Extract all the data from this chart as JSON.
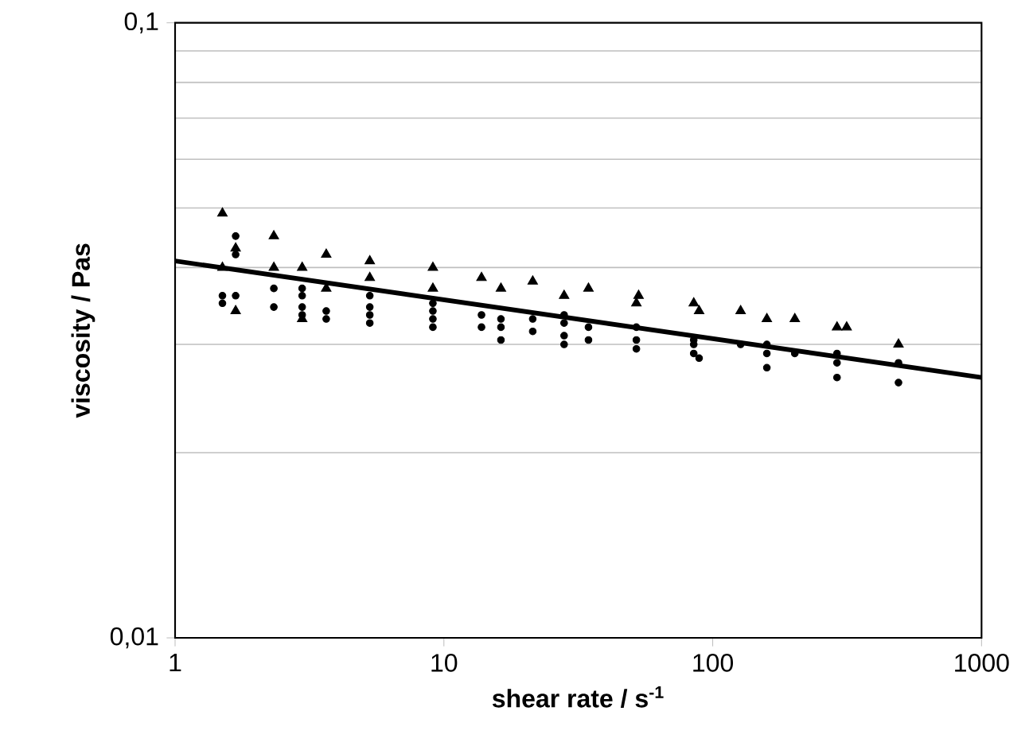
{
  "chart_data": {
    "type": "scatter",
    "xlabel": "shear rate / s$^{-1}$",
    "ylabel": "viscosity / Pas",
    "log": "xy",
    "grid": "y",
    "xlim": [
      1,
      1000
    ],
    "ylim": [
      0.01,
      0.1
    ],
    "xticks": [
      1,
      10,
      100,
      1000
    ],
    "yticks": [
      {
        "value": 0.01,
        "label": "0,01"
      },
      {
        "value": 0.1,
        "label": "0,1"
      }
    ],
    "series": [
      {
        "marker": "triangle",
        "color": "#000000",
        "x": [
          1.5,
          1.5,
          1.68,
          1.68,
          2.33,
          2.33,
          2.97,
          2.97,
          3.65,
          3.65,
          5.3,
          5.3,
          9.1,
          9.1,
          13.8,
          16.3,
          21.4,
          28,
          34.5,
          52,
          53,
          85,
          89,
          127,
          159,
          202,
          290,
          315,
          491
        ],
        "values": [
          0.049,
          0.04,
          0.043,
          0.034,
          0.045,
          0.04,
          0.04,
          0.033,
          0.042,
          0.037,
          0.041,
          0.0385,
          0.04,
          0.037,
          0.0385,
          0.037,
          0.038,
          0.036,
          0.037,
          0.035,
          0.036,
          0.035,
          0.034,
          0.034,
          0.033,
          0.033,
          0.032,
          0.032,
          0.03
        ]
      },
      {
        "marker": "circle",
        "color": "#000000",
        "x": [
          1.5,
          1.5,
          1.68,
          1.68,
          1.68,
          2.33,
          2.33,
          2.97,
          2.97,
          2.97,
          2.97,
          3.65,
          3.65,
          5.3,
          5.3,
          5.3,
          5.3,
          9.1,
          9.1,
          9.1,
          9.1,
          13.8,
          13.8,
          16.3,
          16.3,
          16.3,
          21.4,
          21.4,
          28,
          28,
          28,
          28,
          34.5,
          34.5,
          52,
          52,
          52,
          85,
          85,
          85,
          89,
          127,
          159,
          159,
          159,
          202,
          290,
          290,
          290,
          491,
          491
        ],
        "values": [
          0.036,
          0.035,
          0.045,
          0.042,
          0.036,
          0.037,
          0.0345,
          0.037,
          0.036,
          0.0345,
          0.0335,
          0.034,
          0.033,
          0.036,
          0.0345,
          0.0335,
          0.0325,
          0.035,
          0.034,
          0.033,
          0.032,
          0.0335,
          0.032,
          0.033,
          0.032,
          0.0305,
          0.033,
          0.0315,
          0.0335,
          0.0325,
          0.031,
          0.03,
          0.032,
          0.0305,
          0.032,
          0.0305,
          0.0295,
          0.0305,
          0.03,
          0.029,
          0.0285,
          0.03,
          0.03,
          0.029,
          0.0275,
          0.029,
          0.029,
          0.028,
          0.0265,
          0.028,
          0.026
        ]
      },
      {
        "type": "line",
        "marker": "none",
        "line_style": "solid",
        "color": "#000000",
        "x": [
          1,
          1000
        ],
        "values": [
          0.041,
          0.0265
        ]
      }
    ]
  }
}
